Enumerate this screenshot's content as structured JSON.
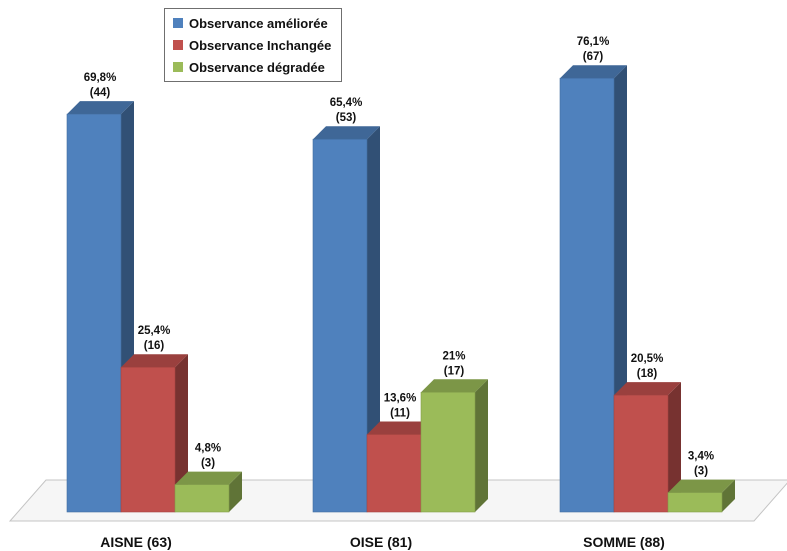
{
  "chart_data": {
    "type": "bar",
    "categories": [
      "AISNE (63)",
      "OISE (81)",
      "SOMME (88)"
    ],
    "series": [
      {
        "name": "Observance améliorée",
        "color": "#4f81bd",
        "values": [
          69.8,
          65.4,
          76.1
        ],
        "labels": [
          [
            "69,8%",
            "(44)"
          ],
          [
            "65,4%",
            "(53)"
          ],
          [
            "76,1%",
            "(67)"
          ]
        ]
      },
      {
        "name": "Observance Inchangée",
        "color": "#c0504d",
        "values": [
          25.4,
          13.6,
          20.5
        ],
        "labels": [
          [
            "25,4%",
            "(16)"
          ],
          [
            "13,6%",
            "(11)"
          ],
          [
            "20,5%",
            "(18)"
          ]
        ]
      },
      {
        "name": "Observance dégradée",
        "color": "#9bbb59",
        "values": [
          4.8,
          21,
          3.4
        ],
        "labels": [
          [
            "4,8%",
            "(3)"
          ],
          [
            "21%",
            "(17)"
          ],
          [
            "3,4%",
            "(3)"
          ]
        ]
      }
    ],
    "ylim": [
      0,
      100
    ],
    "grid": false,
    "legend_position": "top-left",
    "three_d": true
  }
}
